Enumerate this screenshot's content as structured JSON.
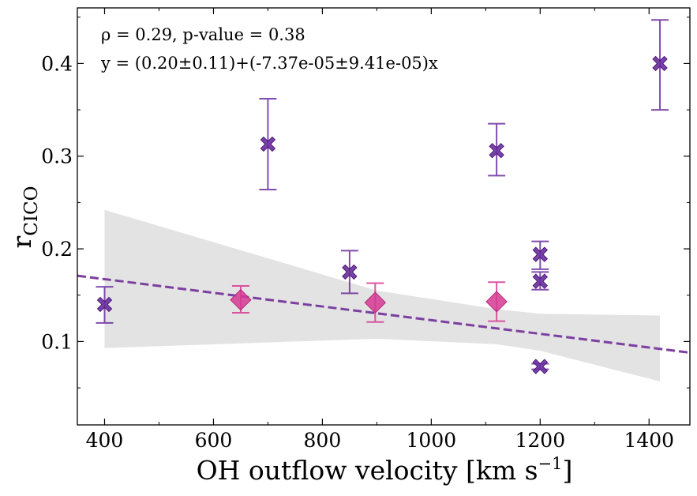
{
  "chart_data": {
    "type": "scatter",
    "xlabel": "OH outflow velocity [km s",
    "xlabel_sup": "−1",
    "xlabel_end": "]",
    "ylabel": "r",
    "ylabel_sub": "CICO",
    "xlim": [
      350,
      1475
    ],
    "ylim": [
      0.01,
      0.46
    ],
    "xticks": [
      400,
      600,
      800,
      1000,
      1200,
      1400
    ],
    "xtick_labels": [
      "400",
      "600",
      "800",
      "1000",
      "1200",
      "1400"
    ],
    "yticks": [
      0.1,
      0.2,
      0.3,
      0.4
    ],
    "ytick_labels": [
      "0.1",
      "0.2",
      "0.3",
      "0.4"
    ],
    "annotations": [
      "ρ = 0.29, p-value = 0.38",
      "y = (0.20±0.11)+(-7.37e-05±9.41e-05)x"
    ],
    "series": [
      {
        "name": "X markers",
        "marker": "X",
        "color": "#6a2d9f",
        "points": [
          {
            "x": 400,
            "y": 0.14,
            "lo": 0.12,
            "hi": 0.159
          },
          {
            "x": 700,
            "y": 0.313,
            "lo": 0.264,
            "hi": 0.362
          },
          {
            "x": 850,
            "y": 0.175,
            "lo": 0.152,
            "hi": 0.198
          },
          {
            "x": 1120,
            "y": 0.306,
            "lo": 0.279,
            "hi": 0.335
          },
          {
            "x": 1200,
            "y": 0.194,
            "lo": 0.178,
            "hi": 0.208
          },
          {
            "x": 1200,
            "y": 0.165,
            "lo": 0.156,
            "hi": 0.175
          },
          {
            "x": 1200,
            "y": 0.073,
            "lo": 0.07,
            "hi": 0.076
          },
          {
            "x": 1420,
            "y": 0.4,
            "lo": 0.35,
            "hi": 0.447
          }
        ]
      },
      {
        "name": "Diamond markers",
        "marker": "D",
        "color": "#d63a93",
        "points": [
          {
            "x": 650,
            "y": 0.145,
            "lo": 0.131,
            "hi": 0.16
          },
          {
            "x": 897,
            "y": 0.142,
            "lo": 0.121,
            "hi": 0.163
          },
          {
            "x": 1120,
            "y": 0.143,
            "lo": 0.122,
            "hi": 0.164
          }
        ]
      }
    ],
    "fit_line": {
      "style": "dashed",
      "color": "#7b3fa0",
      "x": [
        350,
        1475
      ],
      "y": [
        0.171,
        0.088
      ]
    },
    "confidence_band": {
      "color": "#e3e3e3",
      "x": [
        400,
        900,
        1120,
        1200,
        1420
      ],
      "upper": [
        0.242,
        0.155,
        0.135,
        0.13,
        0.128
      ],
      "lower": [
        0.093,
        0.103,
        0.097,
        0.09,
        0.057
      ]
    }
  }
}
